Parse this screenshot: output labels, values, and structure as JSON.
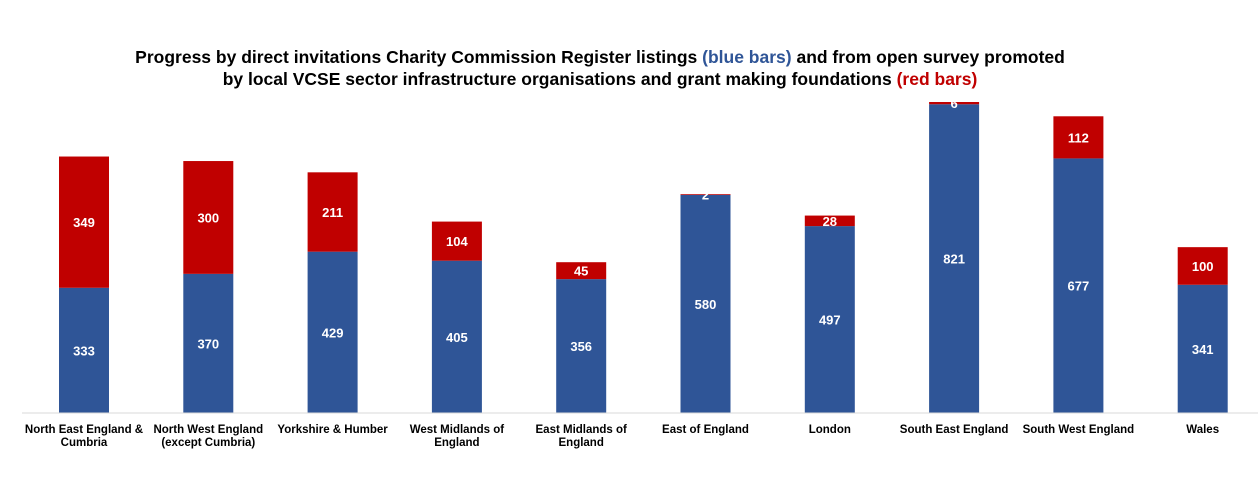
{
  "title": {
    "line1_prefix": "Progress by direct invitations Charity Commission Register listings ",
    "line1_blue": "(blue bars)",
    "line1_suffix": " and from open survey promoted",
    "line2_prefix": "by local VCSE sector infrastructure organisations and grant making foundations ",
    "line2_red": "(red bars)"
  },
  "colors": {
    "blue": "#2F5597",
    "red": "#C00000",
    "axis": "#D9D9D9"
  },
  "chart_data": {
    "type": "bar",
    "stacked": true,
    "title": "Progress by direct invitations Charity Commission Register listings (blue bars) and from open survey promoted by local VCSE sector infrastructure organisations and grant making foundations (red bars)",
    "categories": [
      [
        "North East England &",
        "Cumbria"
      ],
      [
        "North West England",
        "(except Cumbria)"
      ],
      [
        "Yorkshire & Humber"
      ],
      [
        "West Midlands of",
        "England"
      ],
      [
        "East Midlands of",
        "England"
      ],
      [
        "East of England"
      ],
      [
        "London"
      ],
      [
        "South East England"
      ],
      [
        "South West England"
      ],
      [
        "Wales"
      ]
    ],
    "series": [
      {
        "color": "#2F5597",
        "values": [
          333,
          370,
          429,
          405,
          356,
          580,
          497,
          821,
          677,
          341
        ]
      },
      {
        "color": "#C00000",
        "values": [
          349,
          300,
          211,
          104,
          45,
          2,
          28,
          6,
          112,
          100
        ]
      }
    ],
    "ylim": [
      0,
      827
    ],
    "grid": false,
    "legend": "none"
  }
}
